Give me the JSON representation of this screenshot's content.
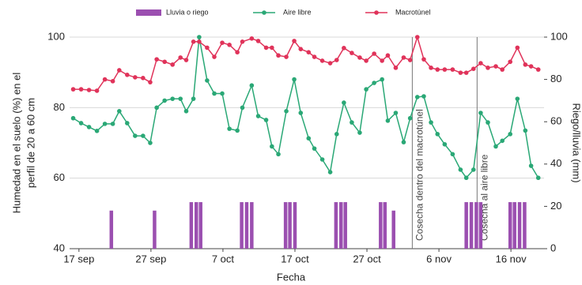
{
  "chart_data": {
    "type": "combo",
    "xlabel": "Fecha",
    "ylabel": [
      "Humedad en el suelo (%) en el",
      "perfil de 20 a 60 cm"
    ],
    "y2label": "Riego/lluvia (mm)",
    "xlim": [
      -1.3,
      64.6
    ],
    "xticks": [
      {
        "value": 0,
        "label": "17 sep"
      },
      {
        "value": 10,
        "label": "27 sep"
      },
      {
        "value": 20,
        "label": "7 oct"
      },
      {
        "value": 30,
        "label": "17 oct"
      },
      {
        "value": 40,
        "label": "27 oct"
      },
      {
        "value": 50,
        "label": "6 nov"
      },
      {
        "value": 60,
        "label": "16 nov"
      }
    ],
    "ylim": [
      40,
      100
    ],
    "yticks": [
      40,
      60,
      80,
      100
    ],
    "y2lim": [
      0,
      100
    ],
    "y2ticks": [
      0,
      20,
      40,
      60,
      80,
      100
    ],
    "grid": true,
    "legend": "top",
    "series": [
      {
        "name": "Lluvia o riego",
        "type": "bar",
        "axis": "y2",
        "color": "#9b4fb0",
        "x": [
          4.5,
          10.5,
          15.6,
          16.3,
          16.9,
          22.6,
          23.3,
          24.0,
          28.7,
          29.3,
          30.0,
          35.7,
          36.4,
          37.0,
          41.9,
          42.5,
          43.7,
          53.8,
          54.5,
          55.2,
          55.8,
          59.9,
          60.5,
          61.2,
          61.9
        ],
        "values": [
          18,
          18,
          22,
          22,
          22,
          22,
          22,
          22,
          22,
          22,
          22,
          22,
          22,
          22,
          22,
          22,
          18,
          22,
          22,
          22,
          22,
          22,
          22,
          22,
          22
        ]
      },
      {
        "name": "Aire libre",
        "type": "line",
        "color": "#2aa876",
        "x": [
          -0.8,
          0.3,
          1.4,
          2.5,
          3.6,
          4.7,
          5.6,
          6.7,
          7.8,
          8.9,
          9.9,
          10.8,
          11.9,
          13.0,
          14.1,
          14.9,
          15.9,
          16.7,
          17.8,
          18.8,
          19.9,
          20.9,
          22.0,
          22.7,
          24.0,
          24.9,
          26.0,
          26.8,
          27.7,
          28.8,
          29.9,
          30.8,
          31.9,
          32.7,
          33.8,
          34.9,
          35.8,
          36.8,
          37.9,
          39.0,
          39.9,
          41.0,
          42.1,
          42.9,
          44.0,
          45.1,
          46.0,
          47.0,
          47.9,
          48.9,
          49.8,
          50.8,
          51.9,
          53.0,
          53.8,
          54.8,
          55.8,
          56.8,
          57.9,
          58.8,
          59.9,
          60.9,
          62.0,
          62.8,
          63.8
        ],
        "values": [
          77,
          75.6,
          74.5,
          73.4,
          75.4,
          75.4,
          79,
          75.6,
          72,
          72,
          70,
          80,
          82,
          82.5,
          82.5,
          79,
          82.5,
          100,
          87.7,
          84,
          84,
          74,
          73.5,
          80,
          86.3,
          77.6,
          76.5,
          69,
          66.8,
          79,
          88,
          78.5,
          71.3,
          68.4,
          65.3,
          61.7,
          72.5,
          81.4,
          75.8,
          72.9,
          85.2,
          87,
          88,
          76.3,
          78.5,
          70.2,
          77,
          83,
          83.2,
          75.8,
          72.5,
          69.6,
          66.8,
          62.4,
          60.1,
          62.4,
          78.5,
          75.8,
          69,
          70.6,
          72.5,
          82.5,
          73.5,
          63.5,
          60.1
        ]
      },
      {
        "name": "Macrotúnel",
        "type": "line",
        "color": "#e0335a",
        "x": [
          -0.8,
          0.3,
          1.4,
          2.5,
          3.6,
          4.7,
          5.6,
          6.7,
          7.8,
          8.9,
          9.9,
          10.8,
          11.9,
          13.0,
          14.1,
          14.9,
          15.9,
          16.7,
          17.8,
          18.8,
          19.9,
          20.9,
          22.0,
          22.7,
          24.0,
          24.9,
          26.0,
          26.8,
          27.7,
          28.8,
          29.9,
          30.8,
          31.9,
          32.7,
          33.8,
          34.9,
          35.8,
          36.8,
          37.9,
          39.0,
          39.9,
          41.0,
          42.1,
          42.9,
          44.0,
          45.1,
          46.0,
          47.0,
          47.9,
          48.9,
          49.8,
          50.8,
          51.9,
          53.0,
          53.8,
          54.8,
          55.8,
          56.8,
          57.9,
          58.8,
          59.9,
          60.9,
          62.0,
          62.8,
          63.8
        ],
        "values": [
          85.2,
          85.2,
          85,
          84.8,
          88,
          87.5,
          90.6,
          89.3,
          88.6,
          88.4,
          87.2,
          93.7,
          93,
          92.2,
          94.2,
          93.5,
          98.7,
          98.7,
          97,
          94.4,
          98.4,
          97.8,
          95.7,
          98.7,
          99.6,
          98.9,
          97,
          97,
          94.8,
          94.4,
          98.9,
          96.6,
          95.7,
          94.4,
          93.3,
          92.6,
          93.5,
          96.9,
          95.5,
          94.2,
          93.3,
          95.3,
          93.3,
          94.8,
          91.3,
          94.2,
          93.5,
          100,
          93.7,
          91.3,
          90.8,
          90.8,
          90.8,
          89.9,
          89.9,
          91,
          92.6,
          91.3,
          91.7,
          90.8,
          93,
          97,
          92.2,
          91.7,
          90.8
        ]
      }
    ],
    "annotations": [
      {
        "text": "Cosecha dentro del macrotúnel",
        "x": 46.3
      },
      {
        "text": "Cosecha al aire libre",
        "x": 55.3
      }
    ]
  }
}
